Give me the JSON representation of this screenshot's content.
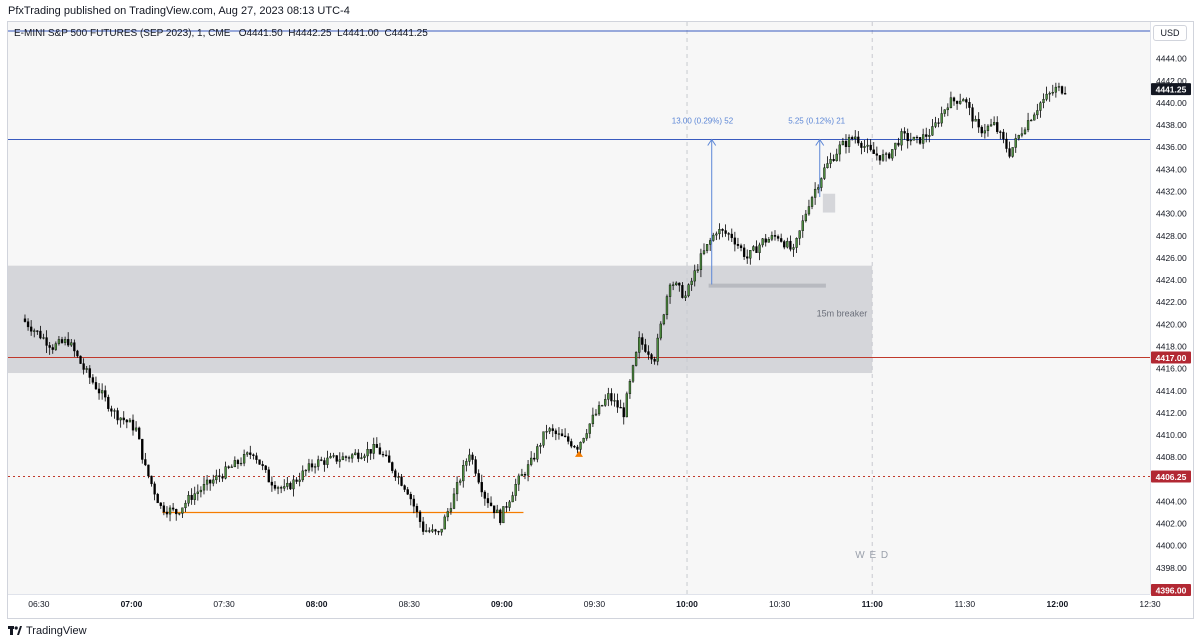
{
  "header": {
    "published": "PfxTrading published on TradingView.com, Aug 27, 2023 08:13 UTC-4"
  },
  "legend": {
    "symbol": "E-MINI S&P 500 FUTURES (SEP 2023), 1, CME",
    "open": "O4441.50",
    "high": "H4442.25",
    "low": "L4441.00",
    "close": "C4441.25"
  },
  "currency": "USD",
  "footer": {
    "brand": "TradingView",
    "logo_icon": "tradingview-logo-icon"
  },
  "chart_data": {
    "type": "candlestick",
    "timeframe": "1",
    "ylim": [
      4397,
      4447
    ],
    "price_ticks": [
      4398,
      4400,
      4402,
      4404,
      4406,
      4408,
      4410,
      4412,
      4414,
      4416,
      4418,
      4420,
      4422,
      4424,
      4426,
      4428,
      4430,
      4432,
      4434,
      4436,
      4438,
      4440,
      4442,
      4444
    ],
    "time_ticks": [
      {
        "label": "06:30",
        "bold": false
      },
      {
        "label": "07:00",
        "bold": true
      },
      {
        "label": "07:30",
        "bold": false
      },
      {
        "label": "08:00",
        "bold": true
      },
      {
        "label": "08:30",
        "bold": false
      },
      {
        "label": "09:00",
        "bold": true
      },
      {
        "label": "09:30",
        "bold": false
      },
      {
        "label": "10:00",
        "bold": true
      },
      {
        "label": "10:30",
        "bold": false
      },
      {
        "label": "11:00",
        "bold": true
      },
      {
        "label": "11:30",
        "bold": false
      },
      {
        "label": "12:00",
        "bold": true
      },
      {
        "label": "12:30",
        "bold": false
      }
    ],
    "session_label": "W E D",
    "x_start": "06:30",
    "x_end": "12:30",
    "price_path": [
      [
        "06:25",
        4420.5
      ],
      [
        "06:35",
        4418
      ],
      [
        "06:40",
        4418.5
      ],
      [
        "06:45",
        4416
      ],
      [
        "06:50",
        4414
      ],
      [
        "06:55",
        4412
      ],
      [
        "07:00",
        4411
      ],
      [
        "07:02",
        4410.5
      ],
      [
        "07:05",
        4407
      ],
      [
        "07:10",
        4403.5
      ],
      [
        "07:15",
        4403
      ],
      [
        "07:20",
        4404.5
      ],
      [
        "07:30",
        4406.5
      ],
      [
        "07:40",
        4408.5
      ],
      [
        "07:45",
        4406
      ],
      [
        "07:50",
        4405
      ],
      [
        "08:00",
        4407.5
      ],
      [
        "08:10",
        4408
      ],
      [
        "08:20",
        4408.8
      ],
      [
        "08:25",
        4407
      ],
      [
        "08:30",
        4405
      ],
      [
        "08:35",
        4401.5
      ],
      [
        "08:40",
        4401
      ],
      [
        "08:45",
        4404.5
      ],
      [
        "08:50",
        4408.5
      ],
      [
        "08:55",
        4404.5
      ],
      [
        "09:00",
        4402.5
      ],
      [
        "09:05",
        4405.5
      ],
      [
        "09:10",
        4407.5
      ],
      [
        "09:15",
        4410.5
      ],
      [
        "09:25",
        4409
      ],
      [
        "09:30",
        4411.5
      ],
      [
        "09:35",
        4413.5
      ],
      [
        "09:40",
        4412
      ],
      [
        "09:45",
        4418.5
      ],
      [
        "09:50",
        4417
      ],
      [
        "09:55",
        4424
      ],
      [
        "10:00",
        4422.5
      ],
      [
        "10:05",
        4426
      ],
      [
        "10:10",
        4428.5
      ],
      [
        "10:15",
        4428
      ],
      [
        "10:20",
        4426
      ],
      [
        "10:25",
        4427.5
      ],
      [
        "10:30",
        4428
      ],
      [
        "10:35",
        4426.5
      ],
      [
        "10:40",
        4431
      ],
      [
        "10:45",
        4434
      ],
      [
        "10:50",
        4436
      ],
      [
        "10:55",
        4437
      ],
      [
        "11:00",
        4435.5
      ],
      [
        "11:05",
        4435
      ],
      [
        "11:10",
        4437
      ],
      [
        "11:15",
        4436.5
      ],
      [
        "11:20",
        4437.5
      ],
      [
        "11:25",
        4440
      ],
      [
        "11:30",
        4440.5
      ],
      [
        "11:35",
        4437.5
      ],
      [
        "11:40",
        4438
      ],
      [
        "11:45",
        4435.5
      ],
      [
        "11:50",
        4438
      ],
      [
        "11:55",
        4440
      ],
      [
        "12:00",
        4441.25
      ]
    ],
    "horizontal_lines": [
      {
        "name": "top-blue-line",
        "price": 4446.5,
        "color": "#3a5bbf",
        "style": "solid"
      },
      {
        "name": "blue-level-line",
        "price": 4436.7,
        "color": "#3a5bbf",
        "style": "solid"
      },
      {
        "name": "red-level-line",
        "price": 4417,
        "color": "#c0392b",
        "style": "solid"
      },
      {
        "name": "red-dotted-line",
        "price": 4406.25,
        "color": "#c0392b",
        "style": "dotted"
      }
    ],
    "price_labels": [
      {
        "text": "4441.25",
        "price": 4441.25,
        "bg": "#131722"
      },
      {
        "text": "4417.00",
        "price": 4417,
        "bg": "#b22833"
      },
      {
        "text": "4406.25",
        "price": 4406.25,
        "bg": "#b22833"
      },
      {
        "text": "4396.00",
        "price": 4396,
        "bg": "#b22833"
      }
    ],
    "zones": [
      {
        "name": "breaker-zone",
        "from_time": "06:30",
        "to_time": "11:00",
        "top": 4425.3,
        "bottom": 4415.6,
        "color": "#d5d6da"
      },
      {
        "name": "small-gap-zone",
        "from_time": "10:44",
        "to_time": "10:48",
        "top": 4431.8,
        "bottom": 4430.1,
        "color": "#d5d6da"
      }
    ],
    "zone_label": "15m breaker",
    "segments": [
      {
        "name": "orange-support-line",
        "from_time": "07:10",
        "to_time": "09:07",
        "price": 4403,
        "color": "#f57c00"
      },
      {
        "name": "gray-pivot-line",
        "from_time": "10:07",
        "to_time": "10:45",
        "price": 4423.5,
        "color": "#b8bac0"
      }
    ],
    "measures": [
      {
        "name": "measure-arrow-1",
        "time": "10:08",
        "from": 4423.6,
        "to": 4436.7,
        "text": "13.00 (0.29%) 52",
        "text_time": "10:05"
      },
      {
        "name": "measure-arrow-2",
        "time": "10:43",
        "from": 4431.5,
        "to": 4436.7,
        "text": "5.25 (0.12%) 21",
        "text_time": "10:42"
      }
    ],
    "markers": [
      {
        "name": "signal-arrow-marker",
        "time": "09:25",
        "price": 4408.3,
        "color": "#f57c00"
      }
    ],
    "vertical_dashed": [
      "10:00",
      "11:00"
    ]
  }
}
